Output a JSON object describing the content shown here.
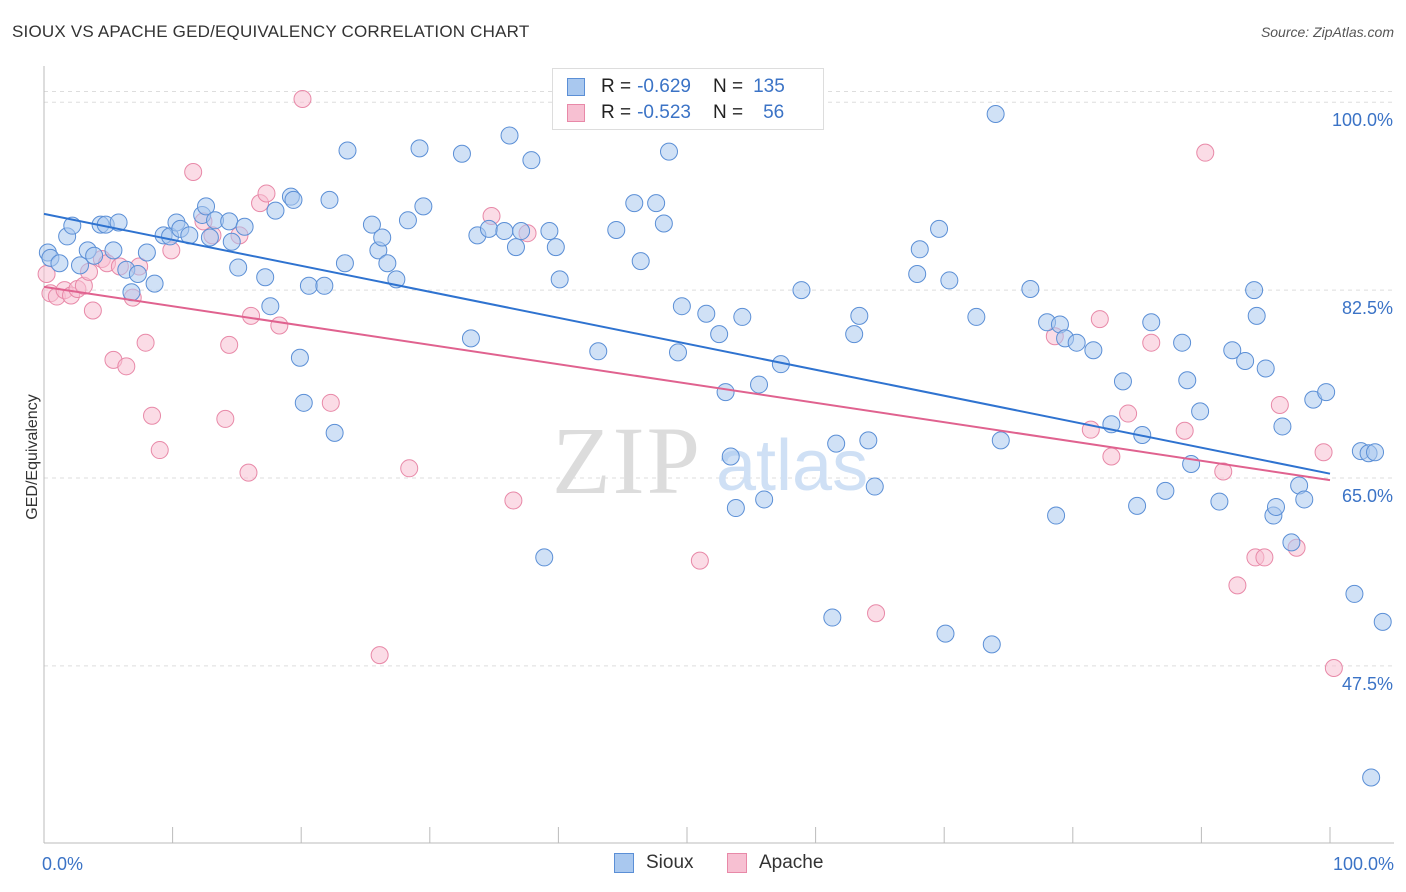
{
  "title": "SIOUX VS APACHE GED/EQUIVALENCY CORRELATION CHART",
  "source": "Source: ZipAtlas.com",
  "watermark": {
    "zip": "ZIP",
    "atlas": "atlas"
  },
  "colors": {
    "sioux_fill": "#a9c8ef",
    "sioux_stroke": "#5b8fd6",
    "sioux_line": "#2f73d0",
    "apache_fill": "#f7c0d2",
    "apache_stroke": "#e889a8",
    "apache_line": "#e0628f",
    "tick_label": "#3b73c6",
    "grid": "#dddddd"
  },
  "legend": {
    "rows": [
      {
        "r_label": "R =",
        "r_value": "-0.629",
        "n_label": "N =",
        "n_value": "135"
      },
      {
        "r_label": "R =",
        "r_value": "-0.523",
        "n_label": "N =",
        "n_value": "56"
      }
    ],
    "bottom": [
      "Sioux",
      "Apache"
    ]
  },
  "chart_data": {
    "type": "scatter",
    "title": "SIOUX VS APACHE GED/EQUIVALENCY CORRELATION CHART",
    "xlabel": "",
    "ylabel": "GED/Equivalency",
    "xlim": [
      0,
      100
    ],
    "ylim": [
      31,
      103
    ],
    "x_tick_labels": {
      "left": "0.0%",
      "right": "100.0%"
    },
    "y_ticks": [
      {
        "value": 47.5,
        "label": "47.5%"
      },
      {
        "value": 65.0,
        "label": "65.0%"
      },
      {
        "value": 82.5,
        "label": "82.5%"
      },
      {
        "value": 100.0,
        "label": "100.0%"
      }
    ],
    "series": [
      {
        "name": "Sioux",
        "trend": {
          "x": [
            0,
            100
          ],
          "y": [
            89.6,
            65.4
          ]
        },
        "points": [
          [
            0.3,
            86.0
          ],
          [
            0.5,
            85.5
          ],
          [
            1.2,
            85.0
          ],
          [
            1.8,
            87.5
          ],
          [
            2.2,
            88.5
          ],
          [
            2.8,
            84.8
          ],
          [
            3.4,
            86.2
          ],
          [
            3.9,
            85.7
          ],
          [
            4.4,
            88.6
          ],
          [
            4.8,
            88.6
          ],
          [
            5.4,
            86.2
          ],
          [
            5.8,
            88.8
          ],
          [
            6.4,
            84.4
          ],
          [
            6.8,
            82.3
          ],
          [
            7.3,
            84.0
          ],
          [
            8.0,
            86.0
          ],
          [
            8.6,
            83.1
          ],
          [
            9.3,
            87.6
          ],
          [
            9.8,
            87.5
          ],
          [
            10.3,
            88.8
          ],
          [
            10.6,
            88.2
          ],
          [
            11.3,
            87.6
          ],
          [
            12.3,
            89.5
          ],
          [
            12.6,
            90.3
          ],
          [
            12.9,
            87.4
          ],
          [
            13.3,
            89.0
          ],
          [
            14.4,
            88.9
          ],
          [
            14.6,
            87.0
          ],
          [
            15.1,
            84.6
          ],
          [
            15.6,
            88.4
          ],
          [
            17.2,
            83.7
          ],
          [
            17.6,
            81.0
          ],
          [
            18.0,
            89.9
          ],
          [
            19.2,
            91.2
          ],
          [
            19.4,
            90.9
          ],
          [
            19.9,
            76.2
          ],
          [
            20.2,
            72.0
          ],
          [
            20.6,
            82.9
          ],
          [
            21.8,
            82.9
          ],
          [
            22.2,
            90.9
          ],
          [
            22.6,
            69.2
          ],
          [
            23.4,
            85.0
          ],
          [
            23.6,
            95.5
          ],
          [
            25.5,
            88.6
          ],
          [
            26.0,
            86.2
          ],
          [
            26.3,
            87.4
          ],
          [
            26.7,
            85.0
          ],
          [
            27.4,
            83.5
          ],
          [
            28.3,
            89.0
          ],
          [
            29.2,
            95.7
          ],
          [
            29.5,
            90.3
          ],
          [
            32.5,
            95.2
          ],
          [
            33.2,
            78.0
          ],
          [
            33.7,
            87.6
          ],
          [
            34.6,
            88.2
          ],
          [
            35.8,
            88.0
          ],
          [
            36.2,
            96.9
          ],
          [
            36.7,
            86.5
          ],
          [
            37.1,
            88.0
          ],
          [
            37.9,
            94.6
          ],
          [
            38.9,
            57.6
          ],
          [
            39.3,
            88.0
          ],
          [
            39.8,
            86.5
          ],
          [
            40.1,
            83.5
          ],
          [
            43.1,
            76.8
          ],
          [
            44.5,
            88.1
          ],
          [
            45.9,
            90.6
          ],
          [
            46.4,
            85.2
          ],
          [
            47.6,
            90.6
          ],
          [
            48.2,
            88.7
          ],
          [
            48.6,
            95.4
          ],
          [
            49.3,
            76.7
          ],
          [
            49.6,
            81.0
          ],
          [
            51.5,
            80.3
          ],
          [
            52.5,
            78.4
          ],
          [
            53.0,
            73.0
          ],
          [
            53.4,
            67.0
          ],
          [
            53.8,
            62.2
          ],
          [
            54.3,
            80.0
          ],
          [
            55.6,
            73.7
          ],
          [
            56.0,
            63.0
          ],
          [
            57.3,
            75.6
          ],
          [
            58.9,
            82.5
          ],
          [
            61.3,
            52.0
          ],
          [
            61.6,
            68.2
          ],
          [
            63.0,
            78.4
          ],
          [
            63.4,
            80.1
          ],
          [
            64.1,
            68.5
          ],
          [
            64.6,
            64.2
          ],
          [
            67.9,
            84.0
          ],
          [
            68.1,
            86.3
          ],
          [
            69.6,
            88.2
          ],
          [
            70.1,
            50.5
          ],
          [
            70.4,
            83.4
          ],
          [
            72.5,
            80.0
          ],
          [
            73.7,
            49.5
          ],
          [
            74.0,
            98.9
          ],
          [
            74.4,
            68.5
          ],
          [
            76.7,
            82.6
          ],
          [
            78.0,
            79.5
          ],
          [
            78.7,
            61.5
          ],
          [
            79.0,
            79.3
          ],
          [
            79.4,
            78.0
          ],
          [
            80.3,
            77.6
          ],
          [
            81.6,
            76.9
          ],
          [
            83.0,
            70.0
          ],
          [
            83.9,
            74.0
          ],
          [
            85.0,
            62.4
          ],
          [
            85.4,
            69.0
          ],
          [
            86.1,
            79.5
          ],
          [
            87.2,
            63.8
          ],
          [
            88.5,
            77.6
          ],
          [
            88.9,
            74.1
          ],
          [
            89.2,
            66.3
          ],
          [
            89.9,
            71.2
          ],
          [
            91.4,
            62.8
          ],
          [
            92.4,
            76.9
          ],
          [
            93.4,
            75.9
          ],
          [
            94.1,
            82.5
          ],
          [
            94.3,
            80.1
          ],
          [
            95.0,
            75.2
          ],
          [
            95.6,
            61.5
          ],
          [
            95.8,
            62.3
          ],
          [
            96.3,
            69.8
          ],
          [
            97.0,
            59.0
          ],
          [
            97.6,
            64.3
          ],
          [
            98.0,
            63.0
          ],
          [
            98.7,
            72.3
          ],
          [
            99.7,
            73.0
          ],
          [
            101.9,
            54.2
          ],
          [
            102.4,
            67.5
          ],
          [
            103.0,
            67.3
          ],
          [
            103.5,
            67.4
          ],
          [
            104.1,
            51.6
          ],
          [
            103.2,
            37.1
          ]
        ]
      },
      {
        "name": "Apache",
        "trend": {
          "x": [
            0,
            100
          ],
          "y": [
            82.8,
            64.8
          ]
        },
        "points": [
          [
            0.2,
            84.0
          ],
          [
            0.5,
            82.2
          ],
          [
            1.0,
            81.9
          ],
          [
            1.6,
            82.5
          ],
          [
            2.1,
            82.0
          ],
          [
            2.6,
            82.6
          ],
          [
            3.1,
            82.9
          ],
          [
            3.5,
            84.2
          ],
          [
            3.8,
            80.6
          ],
          [
            4.5,
            85.4
          ],
          [
            4.9,
            85.0
          ],
          [
            5.4,
            76.0
          ],
          [
            5.9,
            84.7
          ],
          [
            6.4,
            75.4
          ],
          [
            6.9,
            81.8
          ],
          [
            7.4,
            84.7
          ],
          [
            7.9,
            77.6
          ],
          [
            8.4,
            70.8
          ],
          [
            9.0,
            67.6
          ],
          [
            9.9,
            86.2
          ],
          [
            11.6,
            93.5
          ],
          [
            12.4,
            88.9
          ],
          [
            13.1,
            87.6
          ],
          [
            14.1,
            70.5
          ],
          [
            14.4,
            77.4
          ],
          [
            15.2,
            87.6
          ],
          [
            15.9,
            65.5
          ],
          [
            16.1,
            80.1
          ],
          [
            16.8,
            90.6
          ],
          [
            17.3,
            91.5
          ],
          [
            18.3,
            79.2
          ],
          [
            20.1,
            100.3
          ],
          [
            22.3,
            72.0
          ],
          [
            26.1,
            48.5
          ],
          [
            28.4,
            65.9
          ],
          [
            34.8,
            89.4
          ],
          [
            36.5,
            62.9
          ],
          [
            37.6,
            87.8
          ],
          [
            51.0,
            57.3
          ],
          [
            64.7,
            52.4
          ],
          [
            78.6,
            78.2
          ],
          [
            81.4,
            69.5
          ],
          [
            82.1,
            79.8
          ],
          [
            83.0,
            67.0
          ],
          [
            84.3,
            71.0
          ],
          [
            86.1,
            77.6
          ],
          [
            88.7,
            69.4
          ],
          [
            90.3,
            95.3
          ],
          [
            91.7,
            65.6
          ],
          [
            92.8,
            55.0
          ],
          [
            94.2,
            57.6
          ],
          [
            94.9,
            57.6
          ],
          [
            96.1,
            71.8
          ],
          [
            97.4,
            58.5
          ],
          [
            99.5,
            67.4
          ],
          [
            100.3,
            47.3
          ]
        ]
      }
    ]
  }
}
